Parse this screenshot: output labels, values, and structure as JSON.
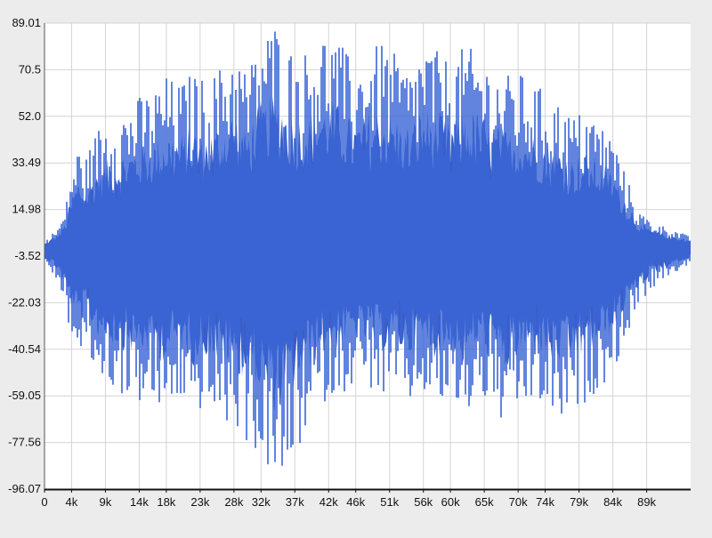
{
  "chart_data": {
    "type": "area",
    "title": "",
    "xlabel": "",
    "ylabel": "",
    "x_ticks": [
      "0",
      "4k",
      "9k",
      "14k",
      "18k",
      "23k",
      "28k",
      "32k",
      "37k",
      "42k",
      "46k",
      "51k",
      "56k",
      "60k",
      "65k",
      "70k",
      "74k",
      "79k",
      "84k",
      "89k"
    ],
    "x_tick_values": [
      0,
      4000,
      9000,
      14000,
      18000,
      23000,
      28000,
      32000,
      37000,
      42000,
      46000,
      51000,
      56000,
      60000,
      65000,
      70000,
      74000,
      79000,
      84000,
      89000
    ],
    "y_ticks": [
      "89.01",
      "70.5",
      "52.0",
      "33.49",
      "14.98",
      "-3.52",
      "-22.03",
      "-40.54",
      "-59.05",
      "-77.56",
      "-96.07"
    ],
    "y_tick_values": [
      89.01,
      70.5,
      52.0,
      33.49,
      14.98,
      -3.52,
      -22.03,
      -40.54,
      -59.05,
      -77.56,
      -96.07
    ],
    "xlim": [
      0,
      95500
    ],
    "ylim": [
      -96.07,
      89.01
    ],
    "grid": true,
    "series": [
      {
        "values_description_x": [
          0,
          1000,
          2000,
          3000,
          4000,
          5000,
          6000,
          8000,
          10000,
          12000,
          14000,
          16000,
          18000,
          20000,
          22000,
          24000,
          26000,
          28000,
          30000,
          32000,
          34000,
          35000,
          36000,
          38000,
          40000,
          42000,
          44000,
          46000,
          48000,
          50000,
          52000,
          54000,
          56000,
          58000,
          60000,
          62000,
          64000,
          66000,
          68000,
          70000,
          72000,
          74000,
          76000,
          78000,
          80000,
          82000,
          84000,
          86000,
          88000,
          90000,
          92000,
          94000,
          95500
        ],
        "upper": [
          2,
          5,
          8,
          14,
          30,
          40,
          35,
          48,
          52,
          55,
          60,
          62,
          68,
          65,
          70,
          66,
          72,
          80,
          70,
          84,
          89,
          88,
          80,
          76,
          84,
          86,
          80,
          72,
          78,
          82,
          76,
          70,
          82,
          78,
          74,
          80,
          78,
          72,
          68,
          70,
          66,
          62,
          58,
          52,
          55,
          50,
          44,
          28,
          14,
          10,
          8,
          6,
          4
        ],
        "lower": [
          -6,
          -10,
          -14,
          -24,
          -36,
          -44,
          -42,
          -52,
          -56,
          -60,
          -62,
          -64,
          -66,
          -60,
          -68,
          -62,
          -70,
          -72,
          -78,
          -84,
          -94,
          -96,
          -90,
          -78,
          -66,
          -60,
          -58,
          -54,
          -56,
          -60,
          -58,
          -62,
          -58,
          -64,
          -60,
          -70,
          -58,
          -64,
          -72,
          -66,
          -62,
          -64,
          -70,
          -68,
          -62,
          -56,
          -50,
          -36,
          -22,
          -16,
          -12,
          -9,
          -7
        ]
      }
    ],
    "series_color": "#3a66d6",
    "series_dark_color": "#2f55c4"
  }
}
